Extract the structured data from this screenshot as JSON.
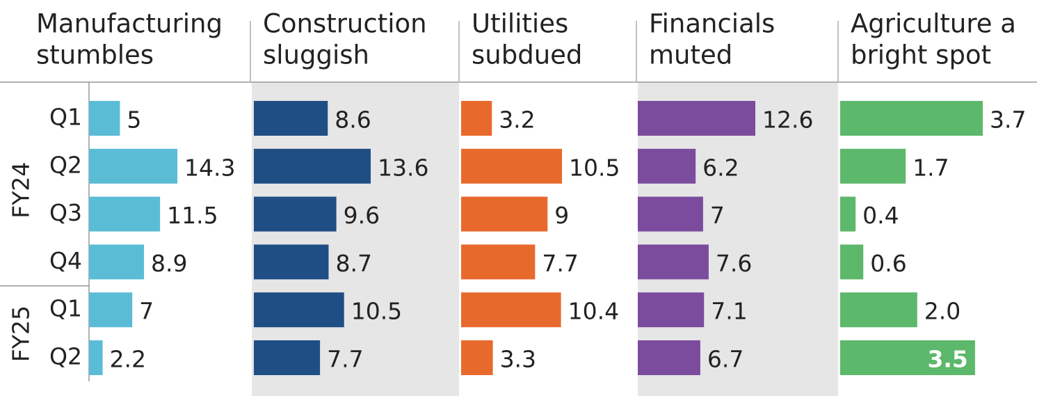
{
  "chart_data": [
    {
      "type": "bar",
      "orientation": "horizontal",
      "title_lines": [
        "Manufacturing",
        "stumbles"
      ],
      "categories": [
        "Q1",
        "Q2",
        "Q3",
        "Q4",
        "Q1",
        "Q2"
      ],
      "groups": [
        {
          "label": "FY24",
          "start": 0,
          "end": 3
        },
        {
          "label": "FY25",
          "start": 4,
          "end": 5
        }
      ],
      "values": [
        5,
        14.3,
        11.5,
        8.9,
        7,
        2.2
      ],
      "color": "#5bbcd6",
      "shaded": false
    },
    {
      "type": "bar",
      "orientation": "horizontal",
      "title_lines": [
        "Construction",
        "sluggish"
      ],
      "values": [
        8.6,
        13.6,
        9.6,
        8.7,
        10.5,
        7.7
      ],
      "color": "#1f4e85",
      "shaded": true
    },
    {
      "type": "bar",
      "orientation": "horizontal",
      "title_lines": [
        "Utilities",
        "subdued"
      ],
      "values": [
        3.2,
        10.5,
        9,
        7.7,
        10.4,
        3.3
      ],
      "color": "#e8692c",
      "shaded": false
    },
    {
      "type": "bar",
      "orientation": "horizontal",
      "title_lines": [
        "Financials",
        "muted"
      ],
      "values": [
        12.6,
        6.2,
        7,
        7.6,
        7.1,
        6.7
      ],
      "color": "#7b4c9d",
      "shaded": true
    },
    {
      "type": "bar",
      "orientation": "horizontal",
      "title_lines": [
        "Agriculture a",
        "bright spot"
      ],
      "values": [
        3.7,
        1.7,
        0.4,
        0.6,
        2.0,
        3.5
      ],
      "value_labels": [
        "3.7",
        "1.7",
        "0.4",
        "0.6",
        "2.0",
        "3.5"
      ],
      "labels_inside": [
        false,
        false,
        false,
        false,
        false,
        true
      ],
      "color": "#5cb86a",
      "shaded": false
    }
  ]
}
